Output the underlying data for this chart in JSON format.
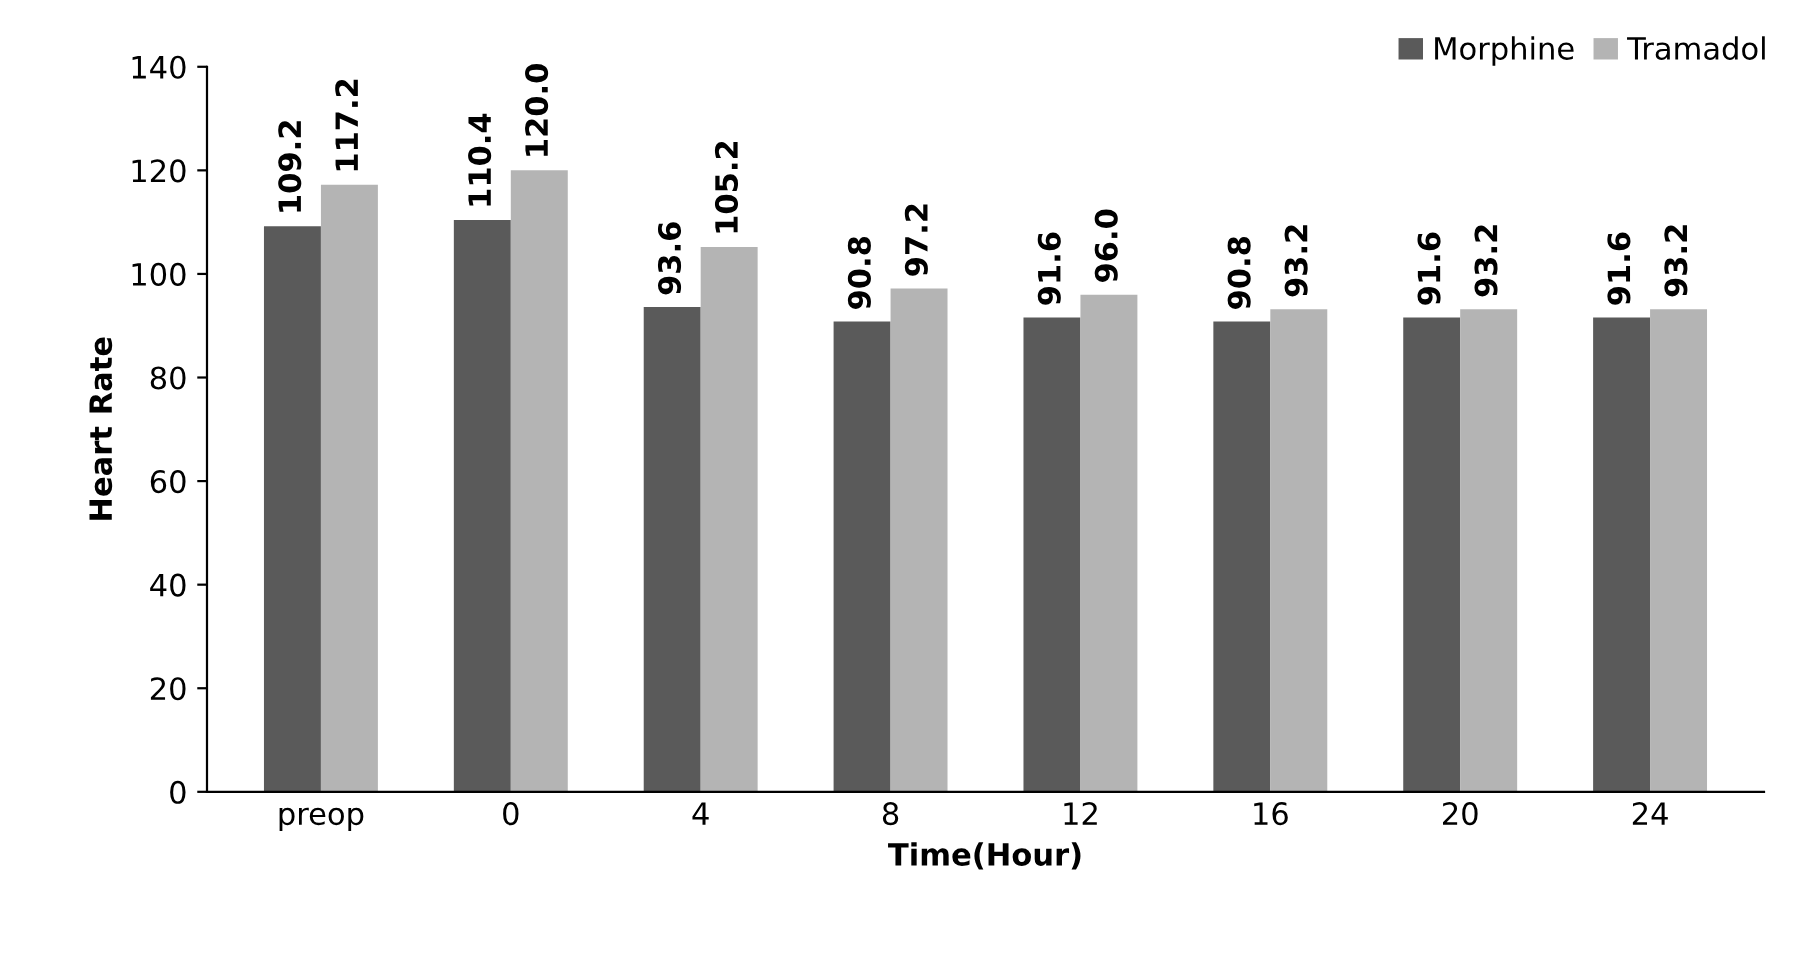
{
  "chart_data": {
    "type": "bar",
    "xlabel": "Time(Hour)",
    "ylabel": "Heart Rate",
    "categories": [
      "preop",
      "0",
      "4",
      "8",
      "12",
      "16",
      "20",
      "24"
    ],
    "series": [
      {
        "name": "Morphine",
        "color": "#5a5a5a",
        "values": [
          109.2,
          110.4,
          93.6,
          90.8,
          91.6,
          90.8,
          91.6,
          91.6
        ],
        "value_labels": [
          "109.2",
          "110.4",
          "93.6",
          "90.8",
          "91.6",
          "90.8",
          "91.6",
          "91.6"
        ]
      },
      {
        "name": "Tramadol",
        "color": "#b4b4b4",
        "values": [
          117.2,
          120.0,
          105.2,
          97.2,
          96.0,
          93.2,
          93.2,
          93.2
        ],
        "value_labels": [
          "117.2",
          "120.0",
          "105.2",
          "97.2",
          "96.0",
          "93.2",
          "93.2",
          "93.2"
        ]
      }
    ],
    "ylim": [
      0,
      140
    ],
    "yticks": [
      0,
      20,
      40,
      60,
      80,
      100,
      120,
      140
    ],
    "grid": false,
    "legend": "top right"
  }
}
